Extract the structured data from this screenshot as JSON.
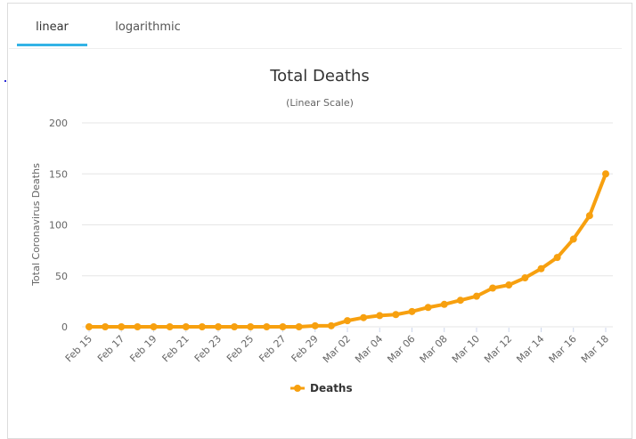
{
  "tabs": [
    {
      "label": "linear",
      "active": true
    },
    {
      "label": "logarithmic",
      "active": false
    }
  ],
  "colors": {
    "series": "#f7a00f",
    "accent": "#33b3e6",
    "grid": "#e6e6e6"
  },
  "chart_data": {
    "type": "line",
    "title": "Total Deaths",
    "subtitle": "(Linear Scale)",
    "xlabel": "",
    "ylabel": "Total Coronavirus Deaths",
    "ylim": [
      0,
      200
    ],
    "yticks": [
      0,
      50,
      100,
      150,
      200
    ],
    "grid": true,
    "legend_position": "bottom-center",
    "x": [
      "Feb 15",
      "Feb 16",
      "Feb 17",
      "Feb 18",
      "Feb 19",
      "Feb 20",
      "Feb 21",
      "Feb 22",
      "Feb 23",
      "Feb 24",
      "Feb 25",
      "Feb 26",
      "Feb 27",
      "Feb 28",
      "Feb 29",
      "Mar 01",
      "Mar 02",
      "Mar 03",
      "Mar 04",
      "Mar 05",
      "Mar 06",
      "Mar 07",
      "Mar 08",
      "Mar 09",
      "Mar 10",
      "Mar 11",
      "Mar 12",
      "Mar 13",
      "Mar 14",
      "Mar 15",
      "Mar 16",
      "Mar 17",
      "Mar 18"
    ],
    "xtick_labels": [
      "Feb 15",
      "Feb 17",
      "Feb 19",
      "Feb 21",
      "Feb 23",
      "Feb 25",
      "Feb 27",
      "Feb 29",
      "Mar 02",
      "Mar 04",
      "Mar 06",
      "Mar 08",
      "Mar 10",
      "Mar 12",
      "Mar 14",
      "Mar 16",
      "Mar 18"
    ],
    "series": [
      {
        "name": "Deaths",
        "values": [
          0,
          0,
          0,
          0,
          0,
          0,
          0,
          0,
          0,
          0,
          0,
          0,
          0,
          0,
          1,
          1,
          6,
          9,
          11,
          12,
          15,
          19,
          22,
          26,
          30,
          38,
          41,
          48,
          57,
          68,
          86,
          109,
          150
        ]
      }
    ]
  }
}
